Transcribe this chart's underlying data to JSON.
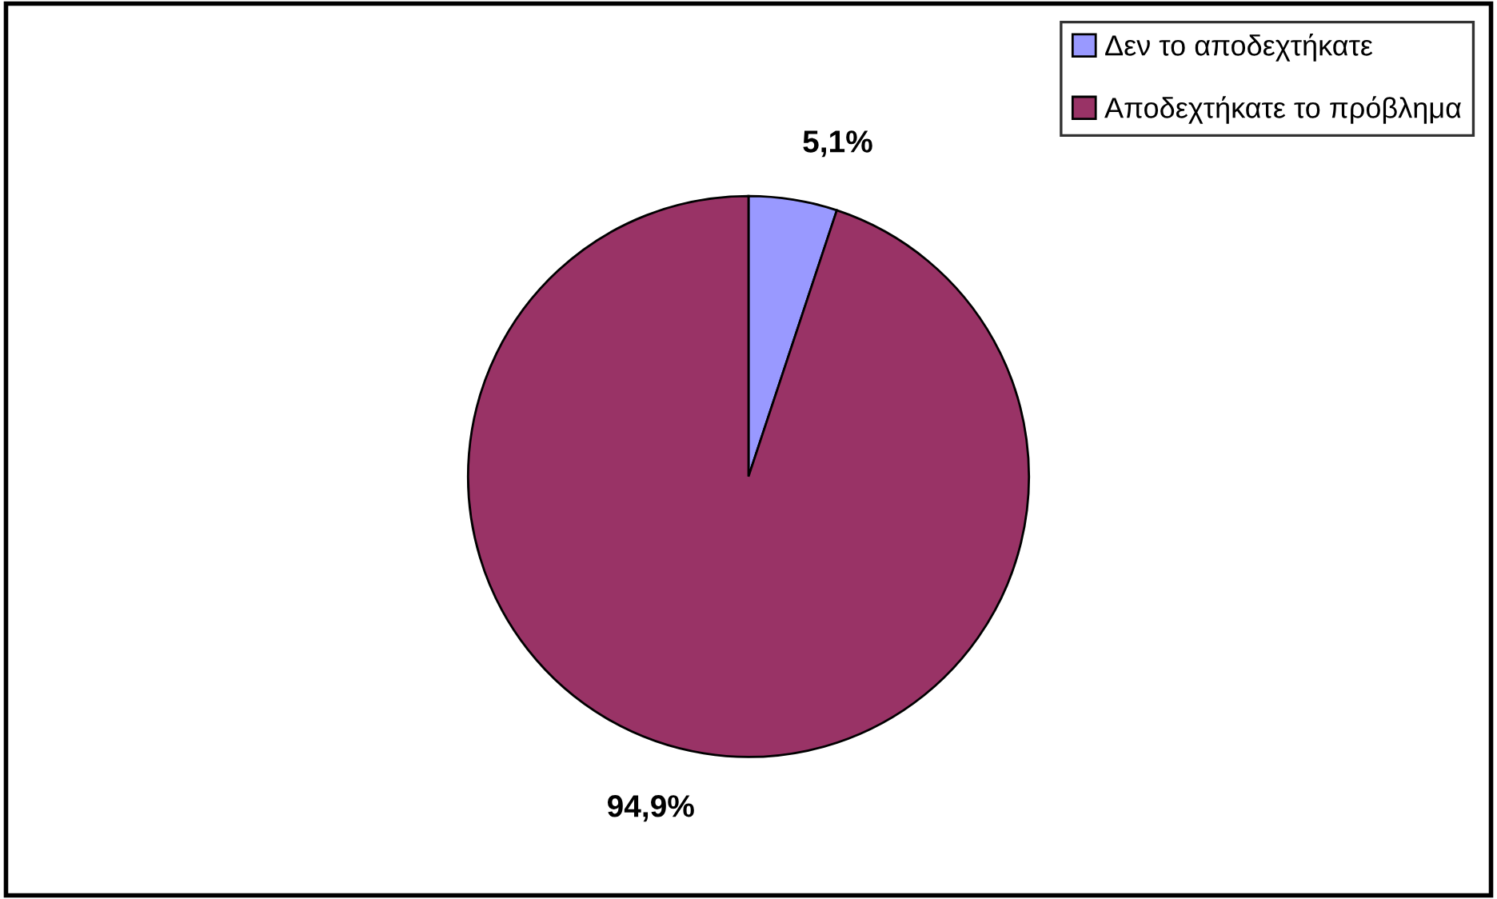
{
  "chart_data": {
    "type": "pie",
    "categories": [
      "Δεν το αποδεχτήκατε",
      "Αποδεχτήκατε το πρόβλημα"
    ],
    "values": [
      5.1,
      94.9
    ],
    "colors": [
      "#9999ff",
      "#993366"
    ],
    "value_labels": [
      "5,1%",
      "94,9%"
    ],
    "legend": "top right"
  }
}
